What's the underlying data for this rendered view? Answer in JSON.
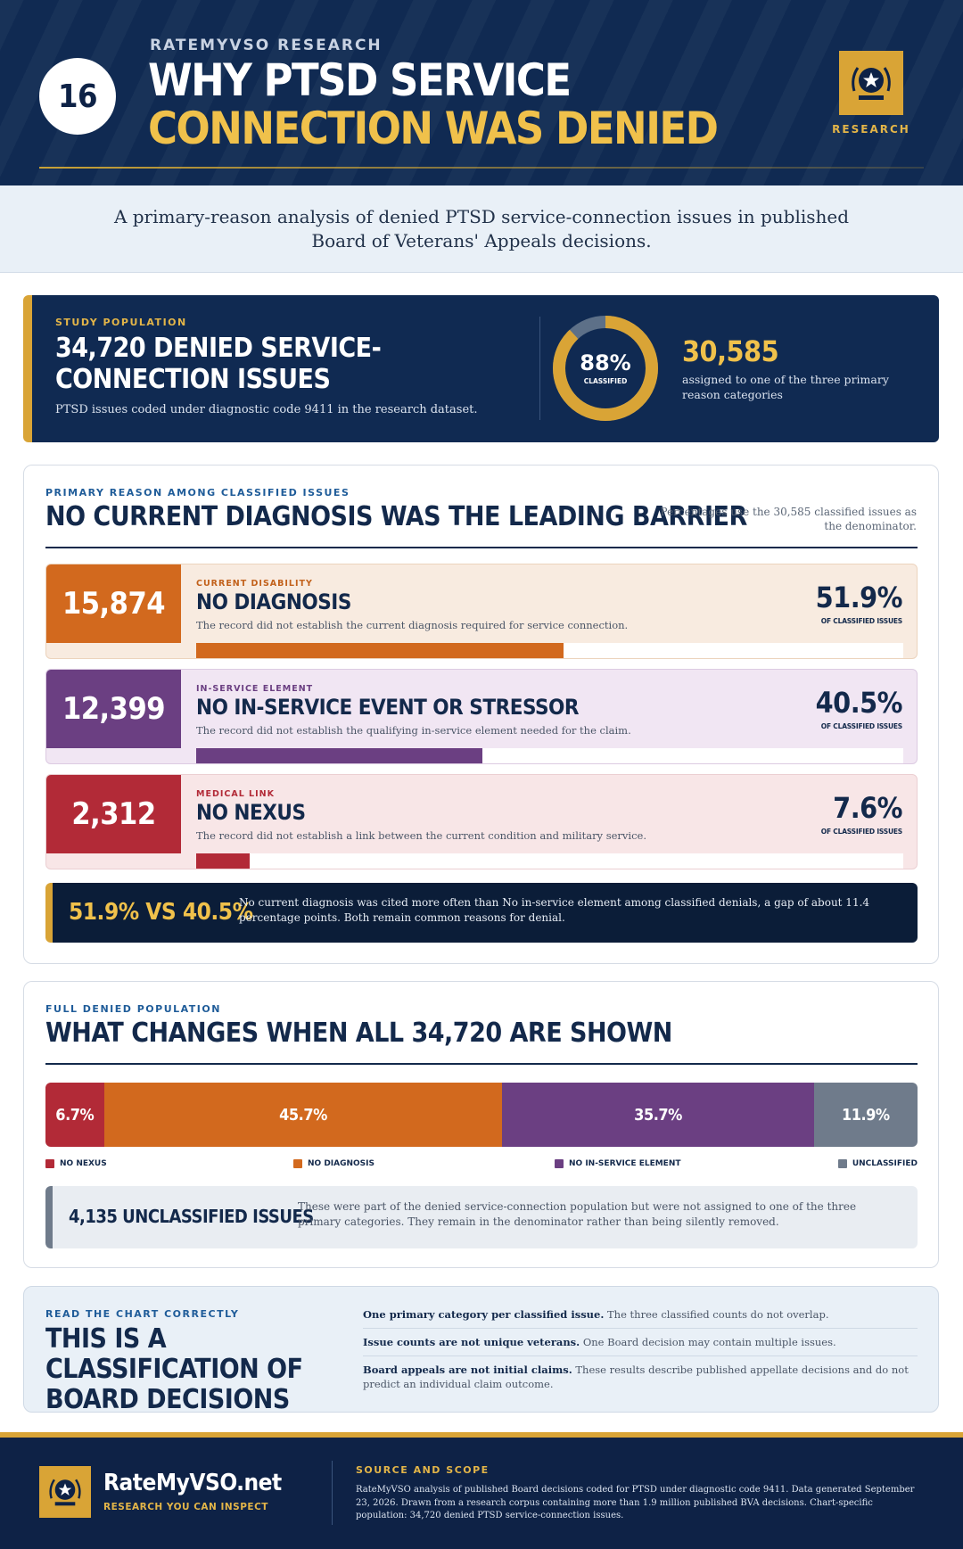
{
  "header": {
    "number": "16",
    "kicker": "RATEMYVSO RESEARCH",
    "title_line1": "WHY PTSD SERVICE",
    "title_line2": "CONNECTION WAS DENIED",
    "seal_label": "RESEARCH"
  },
  "subtitle": "A primary-reason analysis of denied PTSD service-connection issues in published Board of Veterans' Appeals decisions.",
  "population": {
    "label": "STUDY POPULATION",
    "title": "34,720 DENIED SERVICE-CONNECTION ISSUES",
    "note": "PTSD issues coded under diagnostic code 9411 in the research dataset.",
    "donut_percent_label": "88%",
    "donut_sub": "CLASSIFIED",
    "donut_fraction": 0.88,
    "classified_count": "30,585",
    "classified_desc": "assigned to one of the three primary reason categories"
  },
  "primary": {
    "label": "PRIMARY REASON AMONG CLASSIFIED ISSUES",
    "title": "NO CURRENT DIAGNOSIS WAS THE LEADING BARRIER",
    "note": "Percentages use the 30,585 classified issues as the denominator.",
    "pct_sub": "OF CLASSIFIED ISSUES",
    "rows": [
      {
        "count": "15,874",
        "tag": "CURRENT DISABILITY",
        "name": "NO DIAGNOSIS",
        "desc": "The record did not establish the current diagnosis required for service connection.",
        "pct": "51.9%",
        "value": 51.9
      },
      {
        "count": "12,399",
        "tag": "IN-SERVICE ELEMENT",
        "name": "NO IN-SERVICE EVENT OR STRESSOR",
        "desc": "The record did not establish the qualifying in-service element needed for the claim.",
        "pct": "40.5%",
        "value": 40.5
      },
      {
        "count": "2,312",
        "tag": "MEDICAL LINK",
        "name": "NO NEXUS",
        "desc": "The record did not establish a link between the current condition and military service.",
        "pct": "7.6%",
        "value": 7.6
      }
    ],
    "compare_big": "51.9% VS 40.5%",
    "compare_text": "No current diagnosis was cited more often than No in-service element among classified denials, a gap of about 11.4 percentage points. Both remain common reasons for denial."
  },
  "full": {
    "label": "FULL DENIED POPULATION",
    "title": "WHAT CHANGES WHEN ALL 34,720 ARE SHOWN",
    "segments": [
      {
        "label": "6.7%",
        "value": 6.7,
        "legend": "NO NEXUS"
      },
      {
        "label": "45.7%",
        "value": 45.7,
        "legend": "NO DIAGNOSIS"
      },
      {
        "label": "35.7%",
        "value": 35.7,
        "legend": "NO IN-SERVICE ELEMENT"
      },
      {
        "label": "11.9%",
        "value": 11.9,
        "legend": "UNCLASSIFIED"
      }
    ],
    "unclassified_big": "4,135 UNCLASSIFIED ISSUES",
    "unclassified_text": "These were part of the denied service-connection population but were not assigned to one of the three primary categories. They remain in the denominator rather than being silently removed."
  },
  "read": {
    "label": "READ THE CHART CORRECTLY",
    "title": "THIS IS A CLASSIFICATION OF BOARD DECISIONS",
    "items": [
      {
        "bold": "One primary category per classified issue.",
        "text": " The three classified counts do not overlap."
      },
      {
        "bold": "Issue counts are not unique veterans.",
        "text": " One Board decision may contain multiple issues."
      },
      {
        "bold": "Board appeals are not initial claims.",
        "text": " These results describe published appellate decisions and do not predict an individual claim outcome."
      }
    ]
  },
  "footer": {
    "brand": "RateMyVSO.net",
    "tagline": "RESEARCH YOU CAN INSPECT",
    "source_label": "SOURCE AND SCOPE",
    "source_text": "RateMyVSO analysis of published Board decisions coded for PTSD under diagnostic code 9411. Data generated September 23, 2026. Drawn from a research corpus containing more than 1.9 million published BVA decisions. Chart-specific population: 34,720 denied PTSD service-connection issues."
  },
  "colors": {
    "navy": "#102a52",
    "gold": "#d9a436",
    "diagnosis": "#d2691e",
    "in_service": "#6b3f82",
    "nexus": "#b22a37",
    "unclassified": "#6f7b8b"
  }
}
